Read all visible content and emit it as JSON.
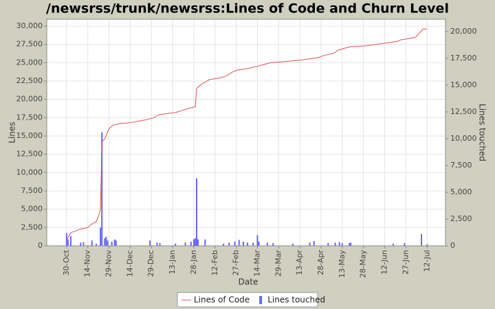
{
  "chart_data": {
    "type": "line",
    "title": "/newsrss/trunk/newsrss:Lines of Code and Churn Level",
    "xlabel": "Date",
    "ylabel": "Lines",
    "y2label": "Lines touched",
    "xlim": [
      "16-Oct",
      "25-Jul"
    ],
    "xticks": [
      "30-Oct",
      "14-Nov",
      "29-Nov",
      "14-Dec",
      "29-Dec",
      "13-Jan",
      "28-Jan",
      "12-Feb",
      "27-Feb",
      "14-Mar",
      "29-Mar",
      "13-Apr",
      "28-Apr",
      "13-May",
      "28-May",
      "12-Jun",
      "27-Jun",
      "12-Jul"
    ],
    "ylim": [
      0,
      30940
    ],
    "yticks": [
      0,
      {
        "value": 2500,
        "label": "2,500"
      },
      {
        "value": 5000,
        "label": "5,000"
      },
      {
        "value": 7500,
        "label": "7,500"
      },
      {
        "value": 10000,
        "label": "10,000"
      },
      {
        "value": 12500,
        "label": "12,500"
      },
      {
        "value": 15000,
        "label": "15,000"
      },
      {
        "value": 17500,
        "label": "17,500"
      },
      {
        "value": 20000,
        "label": "20,000"
      },
      {
        "value": 22500,
        "label": "22,500"
      },
      {
        "value": 25000,
        "label": "25,000"
      },
      {
        "value": 27500,
        "label": "27,500"
      },
      {
        "value": 30000,
        "label": "30,000"
      }
    ],
    "y2lim": [
      0,
      21150
    ],
    "y2ticks": [
      0,
      {
        "value": 2500,
        "label": "2,500"
      },
      {
        "value": 5000,
        "label": "5,000"
      },
      {
        "value": 7500,
        "label": "7,500"
      },
      {
        "value": 10000,
        "label": "10,000"
      },
      {
        "value": 12500,
        "label": "12,500"
      },
      {
        "value": 15000,
        "label": "15,000"
      },
      {
        "value": 17500,
        "label": "17,500"
      },
      {
        "value": 20000,
        "label": "20,000"
      }
    ],
    "grid": true,
    "legend": "bottom",
    "series": [
      {
        "name": "Lines of Code",
        "type": "line",
        "color": "#e05050",
        "x": [
          "30-Oct",
          "2-Nov",
          "5-Nov",
          "9-Nov",
          "14-Nov",
          "17-Nov",
          "20-Nov",
          "22-Nov",
          "23-Nov",
          "24-Nov",
          "26-Nov",
          "29-Nov",
          "2-Dec",
          "7-Dec",
          "14-Dec",
          "25-Dec",
          "31-Dec",
          "3-Jan",
          "15-Jan",
          "20-Jan",
          "25-Jan",
          "29-Jan",
          "30-Jan",
          "2-Feb",
          "8-Feb",
          "15-Feb",
          "20-Feb",
          "24-Feb",
          "28-Feb",
          "7-Mar",
          "14-Mar",
          "23-Mar",
          "5-Apr",
          "15-Apr",
          "26-Apr",
          "30-Apr",
          "7-May",
          "10-May",
          "15-May",
          "19-May",
          "29-May",
          "21-Jun",
          "23-Jun",
          "29-Jun",
          "4-Jul",
          "9-Jul",
          "12-Jul"
        ],
        "values": [
          750,
          1800,
          2000,
          2300,
          2500,
          3000,
          3300,
          4300,
          5000,
          14200,
          14600,
          16000,
          16500,
          16700,
          16800,
          17200,
          17500,
          17900,
          18200,
          18500,
          18800,
          19000,
          21500,
          22000,
          22700,
          22900,
          23200,
          23700,
          24000,
          24200,
          24500,
          25000,
          25200,
          25400,
          25700,
          26000,
          26300,
          26700,
          27000,
          27200,
          27300,
          27900,
          28100,
          28300,
          28500,
          29600,
          29600
        ]
      },
      {
        "name": "Lines touched",
        "type": "bar",
        "axis": "y2",
        "color": "#6666ff",
        "x": [
          "30-Oct",
          "31-Oct",
          "2-Nov",
          "9-Nov",
          "11-Nov",
          "17-Nov",
          "20-Nov",
          "23-Nov",
          "24-Nov",
          "26-Nov",
          "27-Nov",
          "28-Nov",
          "1-Dec",
          "3-Dec",
          "4-Dec",
          "28-Dec",
          "2-Jan",
          "4-Jan",
          "15-Jan",
          "22-Jan",
          "26-Jan",
          "28-Jan",
          "29-Jan",
          "30-Jan",
          "31-Jan",
          "5-Feb",
          "18-Feb",
          "22-Feb",
          "26-Feb",
          "1-Mar",
          "4-Mar",
          "7-Mar",
          "11-Mar",
          "14-Mar",
          "15-Mar",
          "21-Mar",
          "25-Mar",
          "8-Apr",
          "20-Apr",
          "23-Apr",
          "3-May",
          "8-May",
          "11-May",
          "13-May",
          "18-May",
          "19-May",
          "18-Jun",
          "26-Jun",
          "8-Jul",
          "12-Jul"
        ],
        "values": [
          1200,
          600,
          900,
          300,
          350,
          500,
          200,
          1700,
          10600,
          700,
          850,
          500,
          400,
          600,
          500,
          500,
          300,
          250,
          200,
          300,
          400,
          600,
          700,
          6300,
          600,
          600,
          200,
          300,
          400,
          550,
          400,
          300,
          300,
          1000,
          400,
          300,
          250,
          200,
          300,
          450,
          250,
          300,
          350,
          250,
          250,
          300,
          200,
          250,
          1100,
          150
        ]
      }
    ]
  }
}
